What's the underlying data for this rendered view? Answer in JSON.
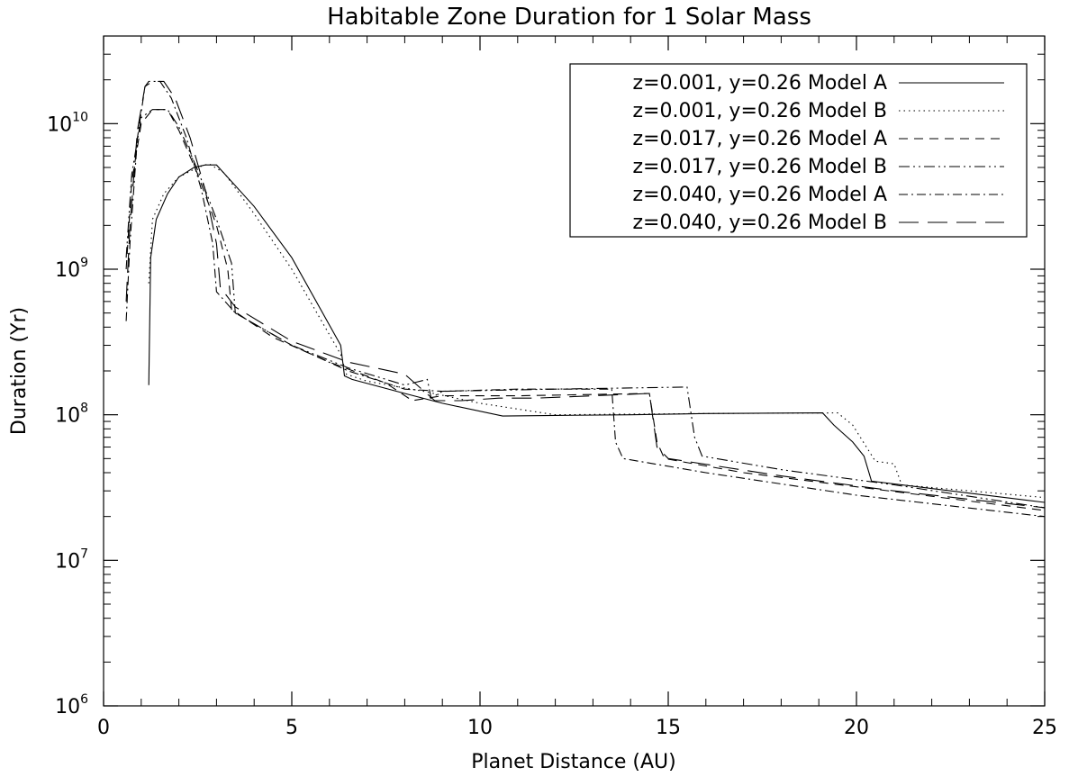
{
  "chart_data": {
    "type": "line",
    "title": "Habitable Zone Duration for 1 Solar Mass",
    "xlabel": "Planet Distance (AU)",
    "ylabel": "Duration (Yr)",
    "xlim": [
      0,
      25
    ],
    "ylim": [
      1000000,
      40000000000
    ],
    "yscale": "log",
    "xticks": [
      0,
      5,
      10,
      15,
      20,
      25
    ],
    "xtick_labels": [
      "0",
      "5",
      "10",
      "15",
      "20",
      "25"
    ],
    "yticks": [
      1000000,
      10000000,
      100000000,
      1000000000,
      10000000000
    ],
    "ytick_labels": [
      {
        "base": "10",
        "exp": "6"
      },
      {
        "base": "10",
        "exp": "7"
      },
      {
        "base": "10",
        "exp": "8"
      },
      {
        "base": "10",
        "exp": "9"
      },
      {
        "base": "10",
        "exp": "10"
      }
    ],
    "grid": false,
    "legend_position": "top-right",
    "series": [
      {
        "name": "z=0.001, y=0.26 Model A",
        "dash": "solid",
        "points": [
          [
            1.2,
            160000000.0
          ],
          [
            1.25,
            1200000000.0
          ],
          [
            1.4,
            2200000000.0
          ],
          [
            1.7,
            3300000000.0
          ],
          [
            2.0,
            4300000000.0
          ],
          [
            2.4,
            5000000000.0
          ],
          [
            2.7,
            5200000000.0
          ],
          [
            3.0,
            5200000000.0
          ],
          [
            4.0,
            2700000000.0
          ],
          [
            5.0,
            1200000000.0
          ],
          [
            6.3,
            300000000.0
          ],
          [
            6.4,
            185000000.0
          ],
          [
            6.6,
            175000000.0
          ],
          [
            8.0,
            140000000.0
          ],
          [
            9.0,
            120000000.0
          ],
          [
            10.6,
            98000000.0
          ],
          [
            12.0,
            99000000.0
          ],
          [
            14.0,
            100000000.0
          ],
          [
            16.0,
            102000000.0
          ],
          [
            19.1,
            103000000.0
          ],
          [
            19.4,
            85000000.0
          ],
          [
            19.9,
            65000000.0
          ],
          [
            20.2,
            52000000.0
          ],
          [
            20.4,
            35000000.0
          ],
          [
            25.0,
            25000000.0
          ]
        ]
      },
      {
        "name": "z=0.001, y=0.26 Model B",
        "dash": "dotted",
        "points": [
          [
            1.2,
            800000000.0
          ],
          [
            1.3,
            2200000000.0
          ],
          [
            1.6,
            3300000000.0
          ],
          [
            2.0,
            4300000000.0
          ],
          [
            2.5,
            5000000000.0
          ],
          [
            2.8,
            5300000000.0
          ],
          [
            3.2,
            4600000000.0
          ],
          [
            4.0,
            2400000000.0
          ],
          [
            5.0,
            1000000000.0
          ],
          [
            6.3,
            260000000.0
          ],
          [
            6.45,
            190000000.0
          ],
          [
            7.0,
            170000000.0
          ],
          [
            8.5,
            145000000.0
          ],
          [
            10.0,
            120000000.0
          ],
          [
            12.0,
            100000000.0
          ],
          [
            16.0,
            102000000.0
          ],
          [
            19.5,
            103000000.0
          ],
          [
            19.9,
            85000000.0
          ],
          [
            20.5,
            48000000.0
          ],
          [
            21.0,
            46000000.0
          ],
          [
            21.2,
            33000000.0
          ],
          [
            25.0,
            27000000.0
          ]
        ]
      },
      {
        "name": "z=0.017, y=0.26 Model A",
        "dash": "dashed",
        "points": [
          [
            0.6,
            1000000000.0
          ],
          [
            0.75,
            4000000000.0
          ],
          [
            1.0,
            10000000000.0
          ],
          [
            1.3,
            12500000000.0
          ],
          [
            1.7,
            12500000000.0
          ],
          [
            2.0,
            9000000000.0
          ],
          [
            2.5,
            4500000000.0
          ],
          [
            3.0,
            2000000000.0
          ],
          [
            3.3,
            1000000000.0
          ],
          [
            3.4,
            530000000.0
          ],
          [
            4.5,
            340000000.0
          ],
          [
            6.0,
            230000000.0
          ],
          [
            7.5,
            165000000.0
          ],
          [
            8.2,
            125000000.0
          ],
          [
            8.6,
            130000000.0
          ],
          [
            9.0,
            135000000.0
          ],
          [
            11.0,
            135000000.0
          ],
          [
            14.5,
            140000000.0
          ],
          [
            14.7,
            65000000.0
          ],
          [
            14.9,
            50000000.0
          ],
          [
            17.0,
            40000000.0
          ],
          [
            20.0,
            32000000.0
          ],
          [
            25.0,
            22000000.0
          ]
        ]
      },
      {
        "name": "z=0.017, y=0.26 Model B",
        "dash": "dash-dot-dot",
        "points": [
          [
            0.6,
            1200000000.0
          ],
          [
            0.75,
            4500000000.0
          ],
          [
            1.0,
            11000000000.0
          ],
          [
            1.3,
            12500000000.0
          ],
          [
            1.7,
            12500000000.0
          ],
          [
            2.0,
            9500000000.0
          ],
          [
            2.5,
            4800000000.0
          ],
          [
            3.0,
            2200000000.0
          ],
          [
            3.4,
            1100000000.0
          ],
          [
            3.5,
            500000000.0
          ],
          [
            5.0,
            300000000.0
          ],
          [
            6.5,
            210000000.0
          ],
          [
            8.0,
            160000000.0
          ],
          [
            8.6,
            175000000.0
          ],
          [
            8.7,
            130000000.0
          ],
          [
            9.0,
            145000000.0
          ],
          [
            12.0,
            150000000.0
          ],
          [
            15.5,
            155000000.0
          ],
          [
            15.7,
            70000000.0
          ],
          [
            15.9,
            52000000.0
          ],
          [
            18.0,
            42000000.0
          ],
          [
            21.0,
            33000000.0
          ],
          [
            25.0,
            23000000.0
          ]
        ]
      },
      {
        "name": "z=0.040, y=0.26 Model A",
        "dash": "dash-dot",
        "points": [
          [
            0.6,
            440000000.0
          ],
          [
            0.7,
            1500000000.0
          ],
          [
            0.9,
            8000000000.0
          ],
          [
            1.1,
            18000000000.0
          ],
          [
            1.2,
            19500000000.0
          ],
          [
            1.5,
            19500000000.0
          ],
          [
            1.8,
            15000000000.0
          ],
          [
            2.2,
            8000000000.0
          ],
          [
            2.6,
            3500000000.0
          ],
          [
            2.9,
            1500000000.0
          ],
          [
            3.0,
            700000000.0
          ],
          [
            3.5,
            500000000.0
          ],
          [
            5.0,
            300000000.0
          ],
          [
            6.5,
            200000000.0
          ],
          [
            8.0,
            150000000.0
          ],
          [
            9.0,
            145000000.0
          ],
          [
            11.0,
            150000000.0
          ],
          [
            13.5,
            150000000.0
          ],
          [
            13.6,
            65000000.0
          ],
          [
            13.8,
            50000000.0
          ],
          [
            16.0,
            40000000.0
          ],
          [
            20.0,
            28000000.0
          ],
          [
            25.0,
            20000000.0
          ]
        ]
      },
      {
        "name": "z=0.040, y=0.26 Model B",
        "dash": "long-dash",
        "points": [
          [
            0.6,
            600000000.0
          ],
          [
            0.7,
            2000000000.0
          ],
          [
            0.9,
            9000000000.0
          ],
          [
            1.1,
            18000000000.0
          ],
          [
            1.3,
            19500000000.0
          ],
          [
            1.6,
            19500000000.0
          ],
          [
            1.9,
            15000000000.0
          ],
          [
            2.3,
            8000000000.0
          ],
          [
            2.7,
            3500000000.0
          ],
          [
            3.0,
            1500000000.0
          ],
          [
            3.1,
            750000000.0
          ],
          [
            3.5,
            550000000.0
          ],
          [
            5.0,
            320000000.0
          ],
          [
            6.5,
            230000000.0
          ],
          [
            8.0,
            190000000.0
          ],
          [
            8.8,
            125000000.0
          ],
          [
            9.5,
            125000000.0
          ],
          [
            10.5,
            130000000.0
          ],
          [
            11.5,
            130000000.0
          ],
          [
            14.5,
            140000000.0
          ],
          [
            14.7,
            60000000.0
          ],
          [
            15.0,
            50000000.0
          ],
          [
            18.0,
            38000000.0
          ],
          [
            21.0,
            30000000.0
          ],
          [
            25.0,
            23000000.0
          ]
        ]
      }
    ]
  }
}
